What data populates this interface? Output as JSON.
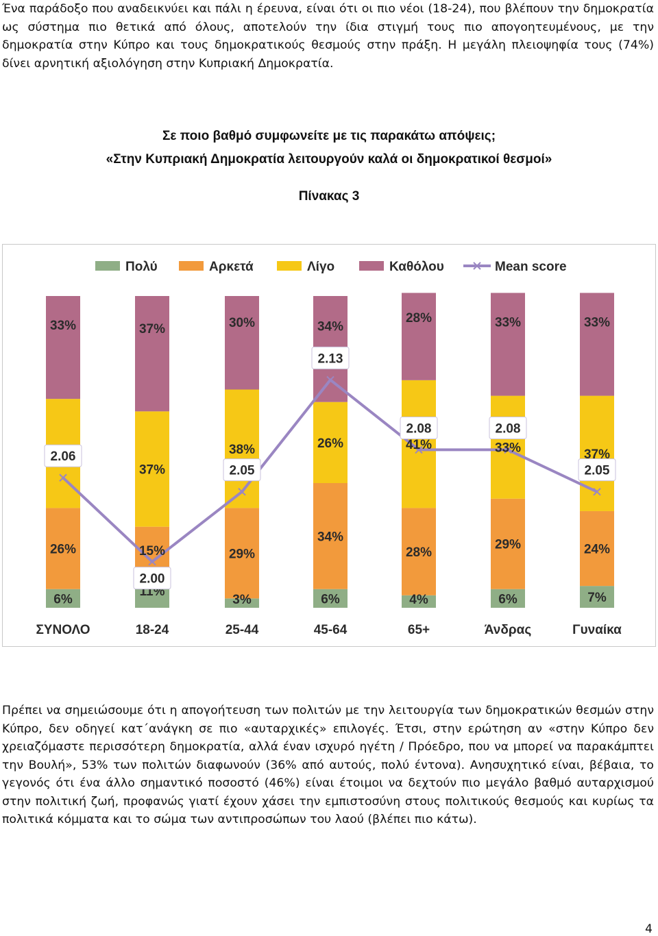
{
  "intro_text": "Ένα παράδοξο που αναδεικνύει και πάλι η έρευνα, είναι ότι οι πιο νέοι (18-24), που βλέπουν την δημοκρατία ως σύστημα πιο θετικά από όλους, αποτελούν την ίδια στιγμή τους πιο απογοητευμένους, με την δημοκρατία στην Κύπρο και τους δημοκρατικούς θεσμούς στην πράξη. Η μεγάλη πλειοψηφία τους (74%) δίνει αρνητική αξιολόγηση στην Κυπριακή Δημοκρατία.",
  "question_line1": "Σε ποιο βαθμό συμφωνείτε με τις παρακάτω απόψεις;",
  "question_line2": "«Στην Κυπριακή Δημοκρατία λειτουργούν καλά οι δημοκρατικοί θεσμοί»",
  "table_label": "Πίνακας 3",
  "body_text": "Πρέπει να σημειώσουμε ότι η απογοήτευση των πολιτών με την λειτουργία των δημοκρατικών θεσμών στην Κύπρο, δεν οδηγεί κατ΄ανάγκη σε πιο «αυταρχικές» επιλογές. Έτσι, στην ερώτηση αν «στην Κύπρο δεν χρειαζόμαστε περισσότερη δημοκρατία, αλλά έναν ισχυρό ηγέτη / Πρόεδρο, που να μπορεί να παρακάμπτει την Βουλή», 53% των πολιτών διαφωνούν (36% από αυτούς, πολύ έντονα). Ανησυχητικό είναι, βέβαια, το γεγονός ότι ένα άλλο σημαντικό ποσοστό (46%) είναι έτοιμοι να δεχτούν πιο μεγάλο βαθμό αυταρχισμού στην πολιτική ζωή, προφανώς γιατί έχουν χάσει την εμπιστοσύνη στους πολιτικούς θεσμούς και κυρίως τα πολιτικά κόμματα και το σώμα των αντιπροσώπων του λαού (βλέπει πιο κάτω).",
  "page_number": "4",
  "chart_data": {
    "type": "bar",
    "stacked": true,
    "categories": [
      "ΣΥΝΟΛΟ",
      "18-24",
      "25-44",
      "45-64",
      "65+",
      "Άνδρας",
      "Γυναίκα"
    ],
    "series": [
      {
        "name": "Πολύ",
        "color": "#8fae86",
        "values": [
          6,
          11,
          3,
          6,
          4,
          6,
          7
        ],
        "labels": [
          "6%",
          "11%",
          "3%",
          "6%",
          "4%",
          "6%",
          "7%"
        ]
      },
      {
        "name": "Αρκετά",
        "color": "#f29a3c",
        "values": [
          26,
          15,
          29,
          34,
          28,
          29,
          24
        ],
        "labels": [
          "26%",
          "15%",
          "29%",
          "34%",
          "28%",
          "29%",
          "24%"
        ]
      },
      {
        "name": "Λίγο",
        "color": "#f6c816",
        "values": [
          35,
          37,
          38,
          26,
          41,
          33,
          37
        ],
        "labels": [
          "35%",
          "37%",
          "38%",
          "26%",
          "41%",
          "33%",
          "37%"
        ]
      },
      {
        "name": "Καθόλου",
        "color": "#b26b88",
        "values": [
          33,
          37,
          30,
          34,
          28,
          33,
          33
        ],
        "labels": [
          "33%",
          "37%",
          "30%",
          "34%",
          "28%",
          "33%",
          "33%"
        ]
      }
    ],
    "line_series": {
      "name": "Mean score",
      "color": "#9a86c2",
      "values": [
        2.06,
        2.0,
        2.05,
        2.13,
        2.08,
        2.08,
        2.05
      ],
      "labels": [
        "2.06",
        "2.00",
        "2.05",
        "2.13",
        "2.08",
        "2.08",
        "2.05"
      ]
    },
    "legend_position": "top",
    "grid": false
  }
}
